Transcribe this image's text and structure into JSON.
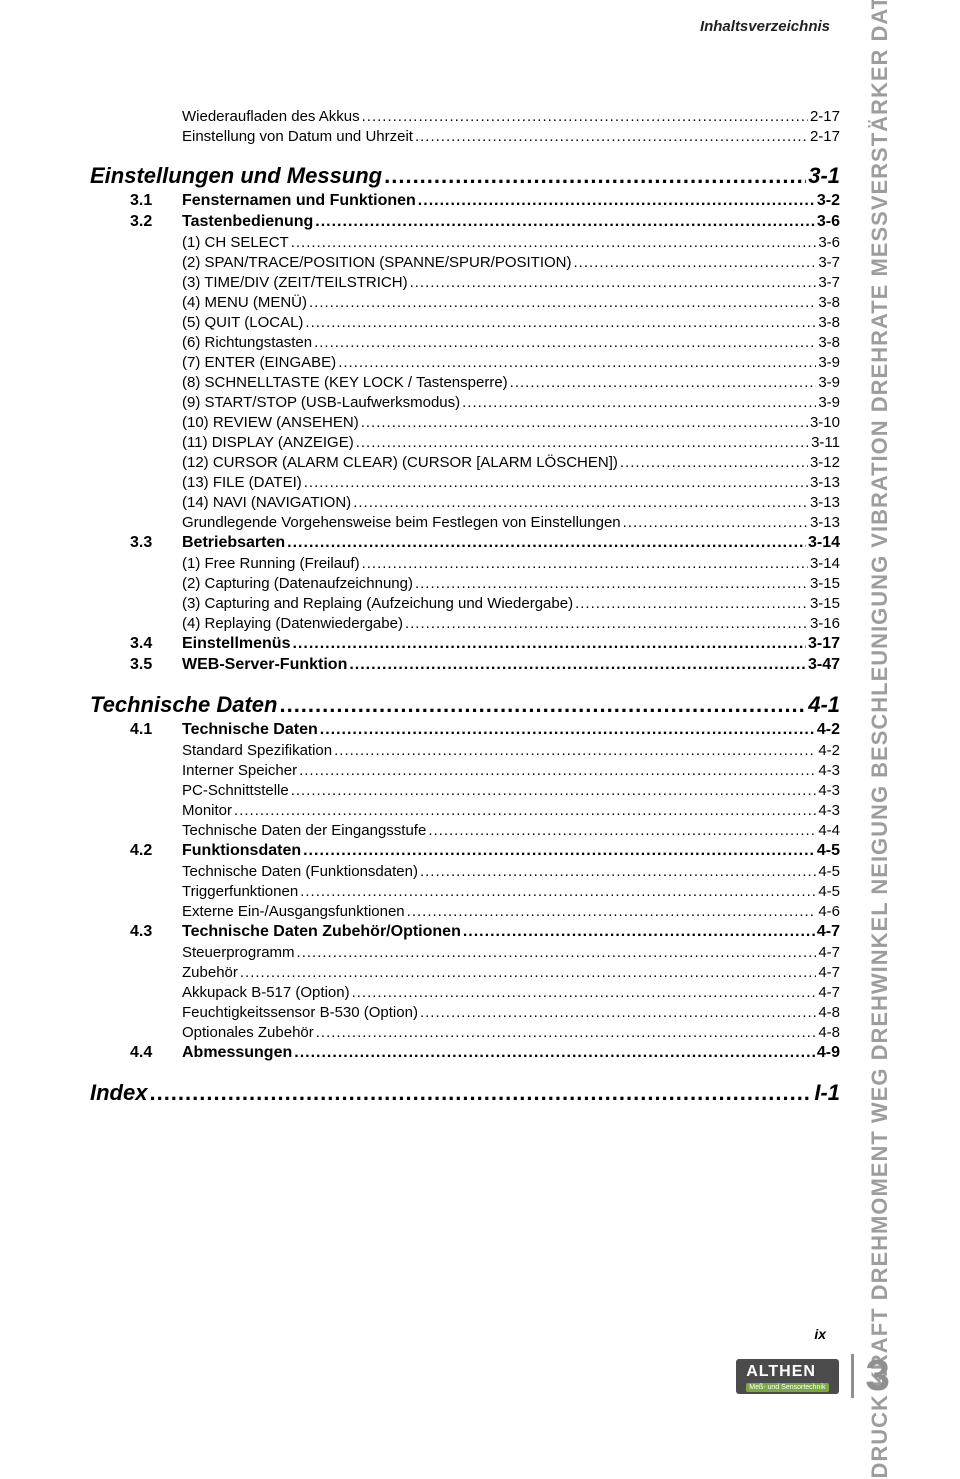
{
  "header": {
    "title": "Inhaltsverzeichnis"
  },
  "sidebar": {
    "categories": [
      "DRUCK",
      "KRAFT",
      "DREHMOMENT",
      "WEG",
      "DREHWINKEL",
      "NEIGUNG",
      "BESCHLEUNIGUNG",
      "VIBRATION",
      "DREHRATE",
      "MESSVERSTÄRKER",
      "DATENLOGGER"
    ]
  },
  "sections": [
    {
      "type": "h3",
      "text": "Wiederaufladen des Akkus",
      "page": "2-17"
    },
    {
      "type": "h3",
      "text": "Einstellung von Datum und Uhrzeit",
      "page": "2-17"
    },
    {
      "type": "h1",
      "text": "Einstellungen und Messung",
      "page": "3-1"
    },
    {
      "type": "h2",
      "num": "3.1",
      "text": "Fensternamen und Funktionen",
      "page": "3-2"
    },
    {
      "type": "h2",
      "num": "3.2",
      "text": "Tastenbedienung",
      "page": "3-6"
    },
    {
      "type": "h3",
      "text": "(1) CH SELECT",
      "page": "3-6"
    },
    {
      "type": "h3",
      "text": "(2) SPAN/TRACE/POSITION (SPANNE/SPUR/POSITION)",
      "page": "3-7"
    },
    {
      "type": "h3",
      "text": "(3) TIME/DIV (ZEIT/TEILSTRICH)",
      "page": "3-7"
    },
    {
      "type": "h3",
      "text": "(4) MENU (MENÜ)",
      "page": "3-8"
    },
    {
      "type": "h3",
      "text": "(5) QUIT (LOCAL)",
      "page": "3-8"
    },
    {
      "type": "h3",
      "text": "(6) Richtungstasten",
      "page": "3-8"
    },
    {
      "type": "h3",
      "text": "(7) ENTER (EINGABE)",
      "page": "3-9"
    },
    {
      "type": "h3",
      "text": "(8) SCHNELLTASTE (KEY LOCK / Tastensperre)",
      "page": "3-9"
    },
    {
      "type": "h3",
      "text": "(9) START/STOP (USB-Laufwerksmodus)",
      "page": "3-9"
    },
    {
      "type": "h3",
      "text": "(10) REVIEW (ANSEHEN)",
      "page": "3-10"
    },
    {
      "type": "h3",
      "text": "(11) DISPLAY (ANZEIGE)",
      "page": "3-11"
    },
    {
      "type": "h3",
      "text": "(12) CURSOR (ALARM CLEAR) (CURSOR [ALARM LÖSCHEN])",
      "page": "3-12"
    },
    {
      "type": "h3",
      "text": "(13) FILE (DATEI)",
      "page": "3-13"
    },
    {
      "type": "h3",
      "text": "(14) NAVI (NAVIGATION)",
      "page": "3-13"
    },
    {
      "type": "h3",
      "text": "Grundlegende Vorgehensweise beim Festlegen von Einstellungen",
      "page": "3-13"
    },
    {
      "type": "h2",
      "num": "3.3",
      "text": "Betriebsarten",
      "page": "3-14"
    },
    {
      "type": "h3",
      "text": "(1) Free Running (Freilauf)",
      "page": "3-14"
    },
    {
      "type": "h3",
      "text": "(2) Capturing (Datenaufzeichnung)",
      "page": "3-15"
    },
    {
      "type": "h3",
      "text": "(3) Capturing and Replaing (Aufzeichung und Wiedergabe)",
      "page": "3-15"
    },
    {
      "type": "h3",
      "text": "(4) Replaying (Datenwiedergabe)",
      "page": "3-16"
    },
    {
      "type": "h2",
      "num": "3.4",
      "text": "Einstellmenüs",
      "page": "3-17"
    },
    {
      "type": "h2",
      "num": "3.5",
      "text": "WEB-Server-Funktion",
      "page": "3-47"
    },
    {
      "type": "h1",
      "text": "Technische Daten",
      "page": "4-1"
    },
    {
      "type": "h2",
      "num": "4.1",
      "text": "Technische Daten",
      "page": "4-2"
    },
    {
      "type": "h3",
      "text": "Standard Spezifikation",
      "page": "4-2"
    },
    {
      "type": "h3",
      "text": "Interner Speicher",
      "page": "4-3"
    },
    {
      "type": "h3",
      "text": "PC-Schnittstelle",
      "page": "4-3"
    },
    {
      "type": "h3",
      "text": "Monitor",
      "page": "4-3"
    },
    {
      "type": "h3",
      "text": "Technische Daten der Eingangsstufe",
      "page": "4-4"
    },
    {
      "type": "h2",
      "num": "4.2",
      "text": "Funktionsdaten",
      "page": "4-5"
    },
    {
      "type": "h3",
      "text": "Technische Daten (Funktionsdaten)",
      "page": "4-5"
    },
    {
      "type": "h3",
      "text": "Triggerfunktionen",
      "page": "4-5"
    },
    {
      "type": "h3",
      "text": "Externe Ein-/Ausgangsfunktionen",
      "page": "4-6"
    },
    {
      "type": "h2",
      "num": "4.3",
      "text": "Technische Daten Zubehör/Optionen",
      "page": "4-7"
    },
    {
      "type": "h3",
      "text": "Steuerprogramm",
      "page": "4-7"
    },
    {
      "type": "h3",
      "text": "Zubehör",
      "page": "4-7"
    },
    {
      "type": "h3",
      "text": "Akkupack B-517 (Option)",
      "page": "4-7"
    },
    {
      "type": "h3",
      "text": "Feuchtigkeitssensor B-530 (Option)",
      "page": "4-8"
    },
    {
      "type": "h3",
      "text": "Optionales Zubehör",
      "page": "4-8"
    },
    {
      "type": "h2",
      "num": "4.4",
      "text": "Abmessungen",
      "page": "4-9"
    },
    {
      "type": "h1",
      "text": "Index",
      "page": "I-1"
    }
  ],
  "footer": {
    "roman": "ix",
    "brand": "ALTHEN",
    "brand_sub": "Meß- und Sensortechnik",
    "pagenum": "3"
  },
  "colors": {
    "text": "#000000",
    "muted": "#8f8f8f",
    "brand_bg": "#4b4b4b",
    "brand_accent": "#7aa843"
  }
}
